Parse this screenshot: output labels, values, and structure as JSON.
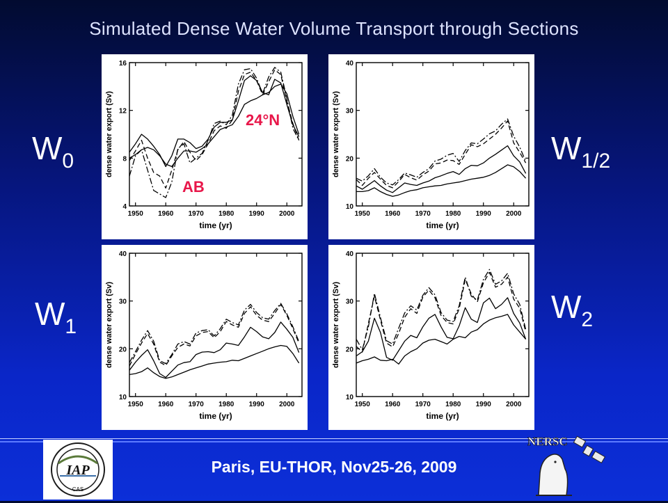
{
  "slide": {
    "title": "Simulated Dense Water Volume Transport through Sections",
    "footer": "Paris, EU-THOR, Nov25-26, 2009"
  },
  "panel_labels": {
    "w0": {
      "main": "W",
      "sub": "0"
    },
    "w12": {
      "main": "W",
      "sub": "1/2"
    },
    "w1": {
      "main": "W",
      "sub": "1"
    },
    "w2": {
      "main": "W",
      "sub": "2"
    }
  },
  "annotations": {
    "lat": "24°N",
    "ab": "AB",
    "color": "#e8174a"
  },
  "logos": {
    "left": {
      "icon": "iap-cas-logo",
      "text": "IAP",
      "ring_text": "CAS"
    },
    "right": {
      "icon": "nersc-logo",
      "text": "NERSC"
    }
  },
  "colors": {
    "title": "#dde3ff",
    "accent": "#e8174a",
    "panel_bg": "#ffffff",
    "ink": "#000000"
  },
  "chart_data": [
    {
      "id": "w0",
      "type": "line",
      "title": "",
      "xlabel": "time (yr)",
      "ylabel": "dense water export (Sv)",
      "xlim": [
        1948,
        2005
      ],
      "ylim": [
        4,
        16
      ],
      "xticks": [
        1950,
        1960,
        1970,
        1980,
        1990,
        2000
      ],
      "yticks": [
        4,
        8,
        12,
        16
      ],
      "x": [
        1948,
        1950,
        1952,
        1954,
        1956,
        1958,
        1960,
        1962,
        1964,
        1966,
        1968,
        1970,
        1972,
        1974,
        1976,
        1978,
        1980,
        1982,
        1984,
        1986,
        1988,
        1990,
        1992,
        1994,
        1996,
        1998,
        2000,
        2002,
        2004
      ],
      "series": [
        {
          "style": "solid",
          "values": [
            8,
            8.3,
            8.7,
            8.9,
            8.7,
            8.2,
            7.5,
            7.3,
            8,
            8.6,
            8.6,
            8.5,
            8.8,
            9.2,
            9.8,
            10.4,
            10.6,
            10.8,
            11.5,
            12.5,
            12.8,
            13,
            13.3,
            13.5,
            14,
            14.2,
            13.4,
            11.5,
            10
          ]
        },
        {
          "style": "solid",
          "values": [
            8.5,
            9.2,
            10,
            9.6,
            9,
            8.3,
            7.3,
            8.2,
            9.6,
            9.6,
            9.3,
            8.8,
            9,
            9.6,
            10.6,
            11,
            11,
            11.2,
            12.8,
            14.5,
            14.9,
            14.5,
            13.5,
            13.3,
            14.6,
            14.3,
            12.5,
            10.8,
            9.8
          ]
        },
        {
          "style": "dashed",
          "values": [
            7.8,
            8.6,
            9.5,
            8,
            6.8,
            6.5,
            5.5,
            7,
            8.7,
            9.4,
            8.5,
            7.8,
            8.3,
            9.2,
            10.3,
            10.7,
            10.5,
            11.2,
            13.6,
            15,
            15.2,
            14.5,
            13.3,
            14.4,
            15.4,
            15,
            12.8,
            10.9,
            9.5
          ]
        },
        {
          "style": "dashdot",
          "values": [
            6.5,
            8.2,
            8.7,
            7,
            5.3,
            5,
            4.7,
            6,
            8.8,
            9.2,
            7.6,
            8,
            8.4,
            9.5,
            10.9,
            11.1,
            10.8,
            11.6,
            14.2,
            15.4,
            15.5,
            14.7,
            13.4,
            14.8,
            15.6,
            15.2,
            13,
            10.5,
            9.5
          ]
        }
      ]
    },
    {
      "id": "w12",
      "type": "line",
      "title": "",
      "xlabel": "time (yr)",
      "ylabel": "dense water export (Sv)",
      "xlim": [
        1948,
        2005
      ],
      "ylim": [
        10,
        40
      ],
      "xticks": [
        1950,
        1960,
        1970,
        1980,
        1990,
        2000
      ],
      "yticks": [
        10,
        20,
        30,
        40
      ],
      "x": [
        1948,
        1950,
        1952,
        1954,
        1956,
        1958,
        1960,
        1962,
        1964,
        1966,
        1968,
        1970,
        1972,
        1974,
        1976,
        1978,
        1980,
        1982,
        1984,
        1986,
        1988,
        1990,
        1992,
        1994,
        1996,
        1998,
        2000,
        2002,
        2004
      ],
      "series": [
        {
          "style": "solid",
          "values": [
            13,
            13,
            13.2,
            13.8,
            13,
            12.4,
            12,
            12.3,
            12.8,
            13.2,
            13.4,
            13.8,
            14,
            14.2,
            14.3,
            14.6,
            14.8,
            15,
            15.3,
            15.6,
            15.8,
            16,
            16.4,
            17,
            17.8,
            18.6,
            18.2,
            17.2,
            15.8
          ]
        },
        {
          "style": "solid",
          "values": [
            14.2,
            13.5,
            14.4,
            15.3,
            14.2,
            13.3,
            12.8,
            13.8,
            14.8,
            14.5,
            14.3,
            14.8,
            15.2,
            15.9,
            16.3,
            16.8,
            17.2,
            16.6,
            17.8,
            18.5,
            18.4,
            19,
            20,
            20.8,
            21.7,
            22.6,
            20.5,
            19.2,
            16.8
          ]
        },
        {
          "style": "dashed",
          "values": [
            15.5,
            14.3,
            15.8,
            17,
            15.6,
            14.3,
            13.8,
            15.1,
            16.6,
            15.9,
            15.4,
            16.5,
            17.3,
            18.8,
            19,
            19.6,
            19.5,
            18.7,
            20.8,
            22.8,
            22.4,
            23,
            24,
            25,
            26.3,
            27.8,
            23.2,
            21.2,
            19
          ]
        },
        {
          "style": "dashdot",
          "values": [
            15.8,
            15.2,
            16.3,
            17.8,
            16,
            14.8,
            14.4,
            15.5,
            16.9,
            16.5,
            16,
            17,
            17.8,
            19.4,
            19.8,
            20.6,
            21,
            19.3,
            21.6,
            23.2,
            23,
            24,
            25.1,
            25.7,
            27.1,
            28.2,
            24.6,
            22.3,
            19.3
          ]
        }
      ]
    },
    {
      "id": "w1",
      "type": "line",
      "title": "",
      "xlabel": "time (yr)",
      "ylabel": "dense water export (Sv)",
      "xlim": [
        1948,
        2005
      ],
      "ylim": [
        10,
        40
      ],
      "xticks": [
        1950,
        1960,
        1970,
        1980,
        1990,
        2000
      ],
      "yticks": [
        10,
        20,
        30,
        40
      ],
      "x": [
        1948,
        1950,
        1952,
        1954,
        1956,
        1958,
        1960,
        1962,
        1964,
        1966,
        1968,
        1970,
        1972,
        1974,
        1976,
        1978,
        1980,
        1982,
        1984,
        1986,
        1988,
        1990,
        1992,
        1994,
        1996,
        1998,
        2000,
        2002,
        2004
      ],
      "series": [
        {
          "style": "solid",
          "values": [
            14.6,
            14.8,
            15.2,
            16,
            15,
            14.2,
            13.8,
            14.1,
            14.6,
            15.1,
            15.6,
            16,
            16.4,
            16.8,
            17,
            17.2,
            17.3,
            17.6,
            17.5,
            18,
            18.5,
            19,
            19.5,
            20,
            20.4,
            20.7,
            20.5,
            19,
            17
          ]
        },
        {
          "style": "solid",
          "values": [
            15.5,
            17.2,
            18.6,
            19.8,
            17.5,
            14.8,
            14,
            15.3,
            16.6,
            17.1,
            17.3,
            18.8,
            19.3,
            19.4,
            19.2,
            19.8,
            21.2,
            21,
            20.7,
            22.5,
            24.5,
            23.6,
            22.5,
            22.1,
            23.4,
            25.6,
            24.1,
            22.4,
            19.2
          ]
        },
        {
          "style": "dashed",
          "values": [
            16.4,
            18.9,
            21.2,
            23.2,
            21,
            17.2,
            16.5,
            18.5,
            20.3,
            21,
            20.6,
            22.7,
            23.4,
            23.6,
            22.3,
            23.6,
            25.7,
            25,
            24.5,
            27.4,
            28.8,
            27,
            26,
            25.7,
            27.4,
            29.3,
            27,
            24.2,
            21.2
          ]
        },
        {
          "style": "dashdot",
          "values": [
            17.1,
            19.4,
            21.8,
            23.8,
            21.6,
            17.5,
            16.9,
            18.8,
            21,
            21.5,
            21,
            23.3,
            23.8,
            24,
            22.7,
            24.2,
            26.2,
            25.5,
            25,
            28.1,
            29.3,
            27.6,
            26.5,
            26.2,
            28,
            29.5,
            27.3,
            24.6,
            21.5
          ]
        }
      ]
    },
    {
      "id": "w2",
      "type": "line",
      "title": "",
      "xlabel": "time (yr)",
      "ylabel": "dense water export (Sv)",
      "xlim": [
        1948,
        2005
      ],
      "ylim": [
        10,
        40
      ],
      "xticks": [
        1950,
        1960,
        1970,
        1980,
        1990,
        2000
      ],
      "yticks": [
        10,
        20,
        30,
        40
      ],
      "x": [
        1948,
        1950,
        1952,
        1954,
        1956,
        1958,
        1960,
        1962,
        1964,
        1966,
        1968,
        1970,
        1972,
        1974,
        1976,
        1978,
        1980,
        1982,
        1984,
        1986,
        1988,
        1990,
        1992,
        1994,
        1996,
        1998,
        2000,
        2002,
        2004
      ],
      "series": [
        {
          "style": "solid",
          "values": [
            17,
            17.5,
            17.8,
            18.3,
            17.6,
            17.5,
            17.8,
            16.8,
            18.5,
            19.4,
            20,
            21.2,
            21.8,
            22,
            21.5,
            21,
            22,
            22.6,
            22.3,
            23.5,
            24,
            25.2,
            26,
            26.5,
            26.8,
            27.2,
            25,
            23.5,
            22
          ]
        },
        {
          "style": "solid",
          "values": [
            18.5,
            19.4,
            21.6,
            26.4,
            23.4,
            18.2,
            17.6,
            19.6,
            21.6,
            22.8,
            22.3,
            24.6,
            26.4,
            27.2,
            24.6,
            22.4,
            22.1,
            24.8,
            28.6,
            26.2,
            25.5,
            29.6,
            30.6,
            28.4,
            29.3,
            30.7,
            27.4,
            25.4,
            22
          ]
        },
        {
          "style": "dashed",
          "values": [
            20.5,
            19.3,
            25.3,
            31,
            26,
            21.2,
            20.4,
            23.2,
            26.6,
            28.4,
            27.4,
            30.8,
            32.3,
            30.7,
            27,
            25.5,
            25.2,
            28.4,
            34.5,
            31.5,
            29.8,
            33.8,
            36,
            32.9,
            33.5,
            35,
            30.4,
            28.5,
            23.5
          ]
        },
        {
          "style": "dashdot",
          "values": [
            22,
            19.8,
            24.6,
            31.6,
            26.5,
            21.7,
            21,
            24.3,
            27.5,
            29,
            28.1,
            31.2,
            32.8,
            31.3,
            27.6,
            26,
            25.7,
            29,
            35,
            31,
            30.2,
            34.5,
            36.6,
            33.5,
            34.2,
            35.8,
            31.5,
            29.3,
            24
          ]
        }
      ]
    }
  ]
}
